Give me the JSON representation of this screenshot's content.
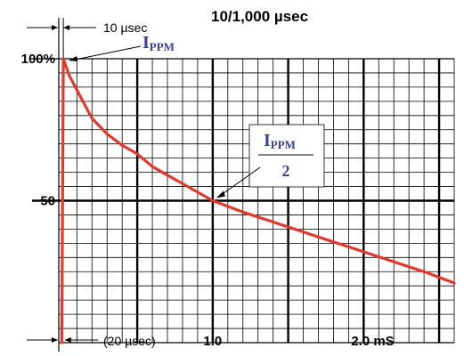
{
  "chart_data": {
    "type": "line",
    "title": "10/1,000 µsec",
    "xlim": [
      -0.02,
      2.6
    ],
    "ylim": [
      0,
      100
    ],
    "x_ticks": [
      {
        "value": 1.0,
        "label": "1.0"
      },
      {
        "value": 2.0,
        "label": "2.0 mS"
      }
    ],
    "y_ticks": [
      {
        "value": 100,
        "label": "100%"
      },
      {
        "value": 50,
        "label": "50"
      }
    ],
    "series": [
      {
        "color": "#e03a2f",
        "x": [
          0.0,
          0.01,
          0.05,
          0.1,
          0.2,
          0.3,
          0.4,
          0.5,
          0.6,
          0.7,
          0.8,
          1.0,
          1.2,
          1.4,
          1.6,
          1.8,
          2.0,
          2.2,
          2.4,
          2.6
        ],
        "y": [
          0,
          100,
          94,
          89,
          79,
          73.5,
          69.5,
          66.5,
          62,
          59,
          56,
          50,
          46,
          42.5,
          39,
          35.5,
          32,
          28.5,
          25,
          21
        ]
      }
    ],
    "annotations": {
      "rise_label": "10 µsec",
      "half_label": "(20 µsec)",
      "peak_label_main": "I",
      "peak_label_sub": "PPM",
      "half_label_main": "I",
      "half_label_sub": "PPM",
      "half_label_den": "2"
    },
    "grid": true
  }
}
